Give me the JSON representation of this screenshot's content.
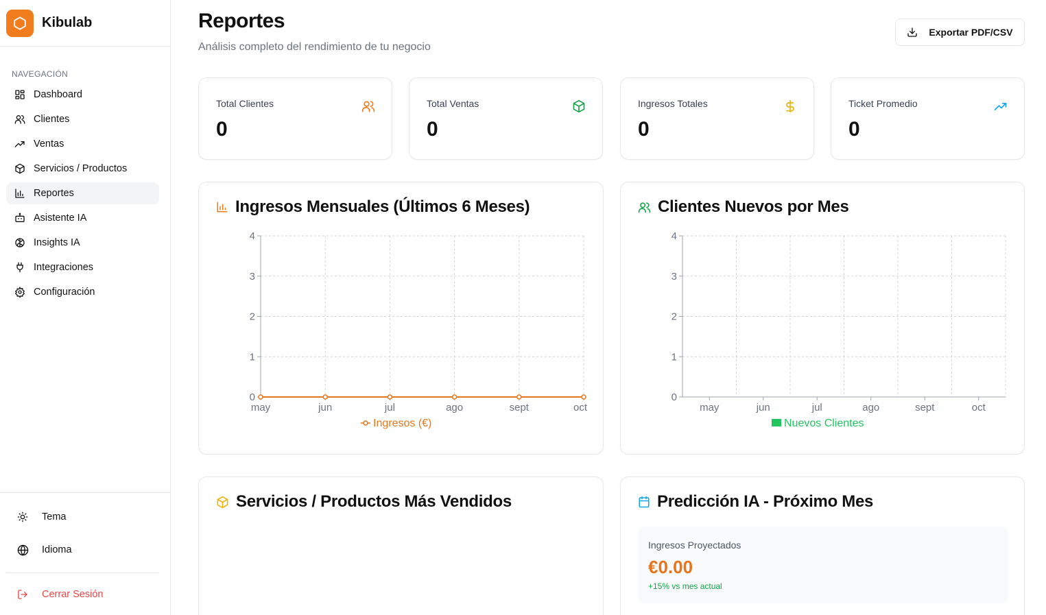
{
  "app": {
    "name": "Kibulab"
  },
  "sidebar": {
    "heading": "NAVEGACIÓN",
    "items": [
      {
        "label": "Dashboard",
        "icon": "dashboard-icon"
      },
      {
        "label": "Clientes",
        "icon": "users-icon"
      },
      {
        "label": "Ventas",
        "icon": "trending-up-icon"
      },
      {
        "label": "Servicios / Productos",
        "icon": "package-icon"
      },
      {
        "label": "Reportes",
        "icon": "bar-chart-icon",
        "active": true
      },
      {
        "label": "Asistente IA",
        "icon": "bot-icon"
      },
      {
        "label": "Insights IA",
        "icon": "brain-icon"
      },
      {
        "label": "Integraciones",
        "icon": "plug-icon"
      },
      {
        "label": "Configuración",
        "icon": "gear-icon"
      }
    ],
    "theme_label": "Tema",
    "language_label": "Idioma",
    "logout_label": "Cerrar Sesión"
  },
  "header": {
    "title": "Reportes",
    "subtitle": "Análisis completo del rendimiento de tu negocio",
    "export_label": "Exportar PDF/CSV"
  },
  "stats": [
    {
      "label": "Total Clientes",
      "value": "0",
      "icon": "users-icon",
      "color": "#f07c1e"
    },
    {
      "label": "Total Ventas",
      "value": "0",
      "icon": "package-icon",
      "color": "#16a34a"
    },
    {
      "label": "Ingresos Totales",
      "value": "0",
      "icon": "dollar-icon",
      "color": "#eab308"
    },
    {
      "label": "Ticket Promedio",
      "value": "0",
      "icon": "trending-up-icon",
      "color": "#0ea5e9"
    }
  ],
  "charts": {
    "revenue_title": "Ingresos Mensuales (Últimos 6 Meses)",
    "clients_title": "Clientes Nuevos por Mes"
  },
  "chart_data": [
    {
      "type": "line",
      "title": "Ingresos Mensuales (Últimos 6 Meses)",
      "categories": [
        "may",
        "jun",
        "jul",
        "ago",
        "sept",
        "oct"
      ],
      "series": [
        {
          "name": "Ingresos (€)",
          "values": [
            0,
            0,
            0,
            0,
            0,
            0
          ],
          "color": "#e8751a"
        }
      ],
      "yticks": [
        "0",
        "1",
        "2",
        "3",
        "4"
      ],
      "ylim": [
        0,
        4
      ],
      "grid": true,
      "legend": "bottom"
    },
    {
      "type": "bar",
      "title": "Clientes Nuevos por Mes",
      "categories": [
        "may",
        "jun",
        "jul",
        "ago",
        "sept",
        "oct"
      ],
      "series": [
        {
          "name": "Nuevos Clientes",
          "values": [
            0,
            0,
            0,
            0,
            0,
            0
          ],
          "color": "#22c55e"
        }
      ],
      "yticks": [
        "0",
        "1",
        "2",
        "3",
        "4"
      ],
      "ylim": [
        0,
        4
      ],
      "grid": true,
      "legend": "bottom"
    }
  ],
  "top_products": {
    "title": "Servicios / Productos Más Vendidos"
  },
  "prediction": {
    "title": "Predicción IA - Próximo Mes",
    "label": "Ingresos Proyectados",
    "value": "€0.00",
    "note": "+15% vs mes actual"
  }
}
